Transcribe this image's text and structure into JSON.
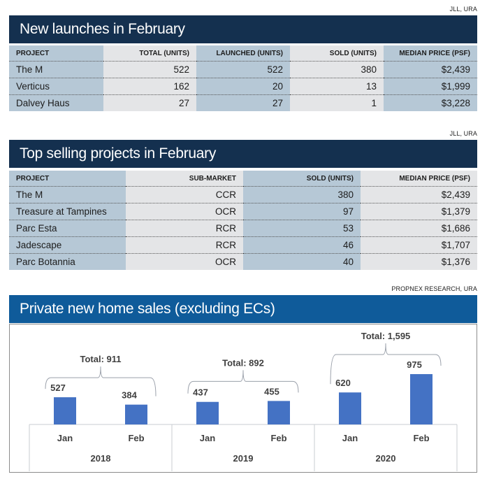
{
  "table1": {
    "source": "JLL, URA",
    "title": "New launches in February",
    "headers": [
      "PROJECT",
      "TOTAL (UNITS)",
      "LAUNCHED (UNITS)",
      "SOLD (UNITS)",
      "MEDIAN PRICE (PSF)"
    ],
    "rows": [
      [
        "The M",
        "522",
        "522",
        "380",
        "$2,439"
      ],
      [
        "Verticus",
        "162",
        "20",
        "13",
        "$1,999"
      ],
      [
        "Dalvey Haus",
        "27",
        "27",
        "1",
        "$3,228"
      ]
    ]
  },
  "table2": {
    "source": "JLL, URA",
    "title": "Top selling projects in February",
    "headers": [
      "PROJECT",
      "SUB-MARKET",
      "SOLD (UNITS)",
      "MEDIAN PRICE (PSF)"
    ],
    "rows": [
      [
        "The M",
        "CCR",
        "380",
        "$2,439"
      ],
      [
        "Treasure at Tampines",
        "OCR",
        "97",
        "$1,379"
      ],
      [
        "Parc Esta",
        "RCR",
        "53",
        "$1,686"
      ],
      [
        "Jadescape",
        "RCR",
        "46",
        "$1,707"
      ],
      [
        "Parc Botannia",
        "OCR",
        "40",
        "$1,376"
      ]
    ]
  },
  "chart_section": {
    "source": "PROPNEX RESEARCH, URA",
    "title": "Private new home sales (excluding ECs)"
  },
  "colors": {
    "navy_banner": "#14304f",
    "blue_banner": "#0f5b9a",
    "column_blue": "#b6c8d6",
    "column_grey": "#e4e5e7",
    "bar": "#4472c4"
  },
  "chart_data": {
    "type": "bar",
    "title": "Private new home sales (excluding ECs)",
    "xlabel": "",
    "ylabel": "",
    "grid": false,
    "legend": "none",
    "ylim": [
      0,
      1000
    ],
    "groups": [
      {
        "year": "2018",
        "total_label": "Total: 911",
        "total": 911,
        "categories": [
          "Jan",
          "Feb"
        ],
        "values": [
          527,
          384
        ]
      },
      {
        "year": "2019",
        "total_label": "Total: 892",
        "total": 892,
        "categories": [
          "Jan",
          "Feb"
        ],
        "values": [
          437,
          455
        ]
      },
      {
        "year": "2020",
        "total_label": "Total: 1,595",
        "total": 1595,
        "categories": [
          "Jan",
          "Feb"
        ],
        "values": [
          620,
          975
        ]
      }
    ]
  }
}
